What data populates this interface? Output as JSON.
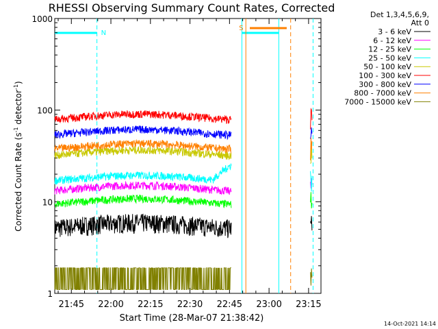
{
  "chart_data": {
    "type": "line",
    "title": "RHESSI Observing Summary Count Rates, Corrected",
    "xlabel": "Start Time (28-Mar-07 21:38:42)",
    "ylabel": "Corrected Count Rate (s⁻¹ detector⁻¹)",
    "ylabel_parts": [
      "Corrected Count Rate (s",
      "-1",
      " detector",
      "-1",
      ")"
    ],
    "timestamp": "14-Oct-2021 14:14",
    "yscale": "log",
    "ylim": [
      1,
      1000
    ],
    "xlim_min": [
      0,
      101
    ],
    "x_units": "minutes after 21:38:42",
    "x_ticks": [
      {
        "min": 6.3,
        "label": "21:45"
      },
      {
        "min": 21.3,
        "label": "22:00"
      },
      {
        "min": 36.3,
        "label": "22:15"
      },
      {
        "min": 51.3,
        "label": "22:30"
      },
      {
        "min": 66.3,
        "label": "22:45"
      },
      {
        "min": 81.3,
        "label": "23:00"
      },
      {
        "min": 96.3,
        "label": "23:15"
      }
    ],
    "y_ticks": [
      {
        "value": 1,
        "label": "1"
      },
      {
        "value": 10,
        "label": "10"
      },
      {
        "value": 100,
        "label": "100"
      },
      {
        "value": 1000,
        "label": "1000"
      }
    ],
    "legend_header": [
      "Det 1,3,4,5,6,9,",
      "Att 0"
    ],
    "legend_position": "right, outside plot",
    "series": [
      {
        "name": "3 - 6 keV",
        "color": "#000000",
        "level": 5.5
      },
      {
        "name": "6 - 12 keV",
        "color": "#ff00ff",
        "level": 14
      },
      {
        "name": "12 - 25 keV",
        "color": "#00ff00",
        "level": 10
      },
      {
        "name": "25 - 50 keV",
        "color": "#00ffff",
        "level": 18
      },
      {
        "name": "50 - 100 keV",
        "color": "#c8c800",
        "level": 34
      },
      {
        "name": "100 - 300 keV",
        "color": "#ff0000",
        "level": 84
      },
      {
        "name": "300 - 800 keV",
        "color": "#0000ff",
        "level": 57
      },
      {
        "name": "800 - 7000 keV",
        "color": "#ff8000",
        "level": 40
      },
      {
        "name": "7000 - 15000 keV",
        "color": "#808000",
        "level": 1.5
      }
    ],
    "data_gap_min": [
      67,
      97
    ],
    "saa_label": "S",
    "night_label": "N",
    "night_color": "#00ffff",
    "saa_color": "#ff8000",
    "night_intervals_min": [
      [
        0,
        16
      ],
      [
        71,
        85
      ]
    ],
    "night_boundaries_min": [
      16,
      71,
      85,
      98
    ],
    "saa_interval_min": [
      74,
      88
    ],
    "saa_boundaries_min": [
      72.5,
      89.5
    ]
  }
}
